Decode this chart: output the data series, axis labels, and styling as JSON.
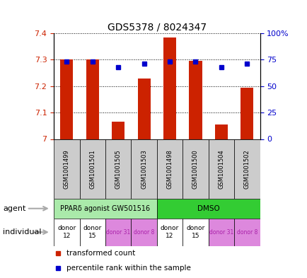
{
  "title": "GDS5378 / 8024347",
  "samples": [
    "GSM1001499",
    "GSM1001501",
    "GSM1001505",
    "GSM1001503",
    "GSM1001498",
    "GSM1001500",
    "GSM1001504",
    "GSM1001502"
  ],
  "bar_values": [
    7.3,
    7.3,
    7.065,
    7.23,
    7.385,
    7.295,
    7.055,
    7.195
  ],
  "percentile_values": [
    0.73,
    0.73,
    0.68,
    0.71,
    0.73,
    0.73,
    0.68,
    0.71
  ],
  "ylim_left": [
    7.0,
    7.4
  ],
  "ylim_right": [
    0.0,
    1.0
  ],
  "yticks_left": [
    7.0,
    7.1,
    7.2,
    7.3,
    7.4
  ],
  "ytick_labels_left": [
    "7",
    "7.1",
    "7.2",
    "7.3",
    "7.4"
  ],
  "yticks_right": [
    0.0,
    0.25,
    0.5,
    0.75,
    1.0
  ],
  "ytick_labels_right": [
    "0",
    "25",
    "50",
    "75",
    "100%"
  ],
  "bar_color": "#cc2200",
  "percentile_color": "#0000cc",
  "agent_light_green": "#aaeaaa",
  "agent_dark_green": "#33cc33",
  "agent_labels": [
    "PPARδ agonist GW501516",
    "DMSO"
  ],
  "individual_labels": [
    "donor\n12",
    "donor\n15",
    "donor 31",
    "donor 8",
    "donor\n12",
    "donor\n15",
    "donor 31",
    "donor 8"
  ],
  "individual_colors": [
    "white",
    "white",
    "#dd88dd",
    "#dd88dd",
    "white",
    "white",
    "#dd88dd",
    "#dd88dd"
  ],
  "individual_text_colors": [
    "black",
    "black",
    "#aa22aa",
    "#aa22aa",
    "black",
    "black",
    "#aa22aa",
    "#aa22aa"
  ],
  "legend_tc_color": "#cc2200",
  "legend_pr_color": "#0000cc",
  "left_tick_color": "#cc2200",
  "right_tick_color": "#0000cc",
  "arrow_color": "#aaaaaa",
  "xlabel_area_color": "#cccccc",
  "bar_width": 0.5
}
